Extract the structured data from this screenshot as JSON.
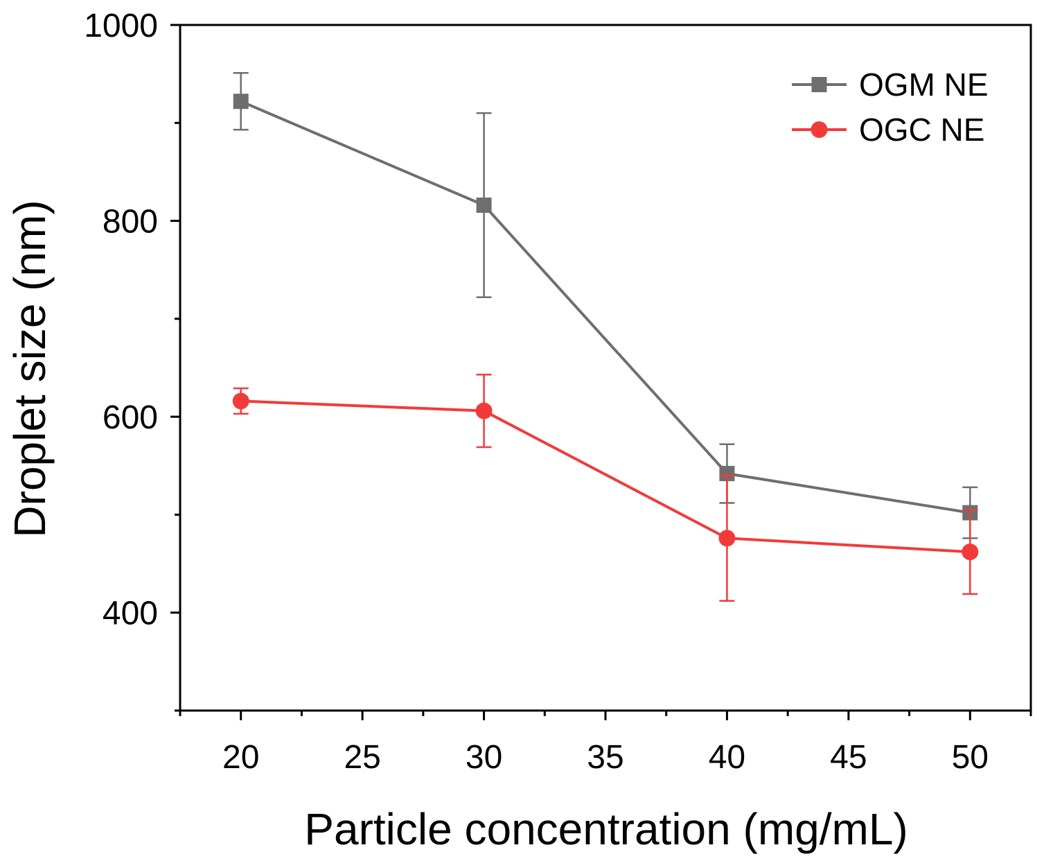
{
  "chart_data": {
    "type": "line",
    "title": "",
    "xlabel": "Particle concentration (mg/mL)",
    "ylabel": "Droplet size (nm)",
    "xlim": [
      17.5,
      52.5
    ],
    "ylim": [
      300,
      1000
    ],
    "xticks": [
      20,
      25,
      30,
      35,
      40,
      45,
      50
    ],
    "yticks": [
      400,
      600,
      800,
      1000
    ],
    "x": [
      20,
      30,
      40,
      50
    ],
    "series": [
      {
        "name": "OGM NE",
        "color": "#6e6e6e",
        "marker": "square",
        "values": [
          922,
          816,
          542,
          502
        ],
        "errors": [
          29,
          94,
          30,
          26
        ]
      },
      {
        "name": "OGC NE",
        "color": "#f23a3a",
        "marker": "circle",
        "values": [
          616,
          606,
          476,
          462
        ],
        "errors": [
          13,
          37,
          64,
          43
        ]
      }
    ],
    "legend_position": "top-right",
    "grid": false
  }
}
